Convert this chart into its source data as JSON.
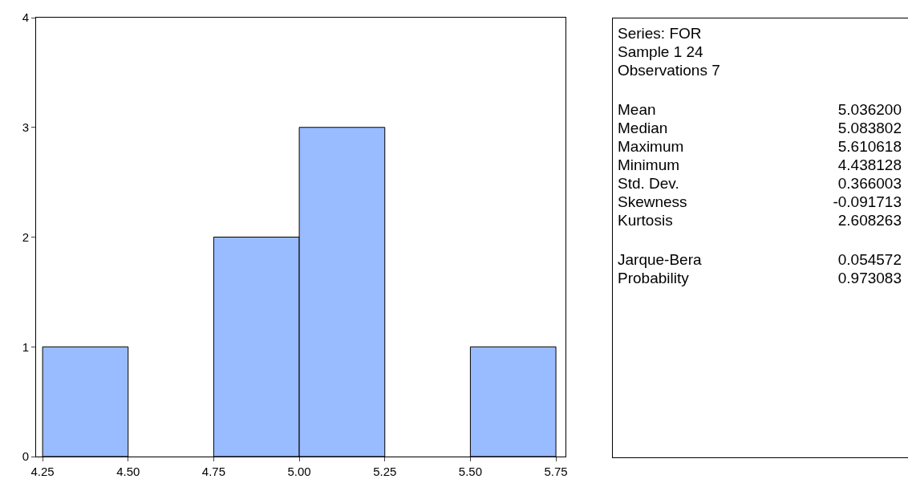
{
  "chart_data": [
    {
      "type": "histogram",
      "bins": [
        4.25,
        4.5,
        4.75,
        5.0,
        5.25,
        5.5,
        5.75
      ],
      "values": [
        1,
        0,
        2,
        3,
        0,
        1
      ],
      "color": "#99bbff",
      "xlim": [
        4.231,
        5.778
      ],
      "ylim": [
        0,
        4
      ],
      "xticks": [
        {
          "value": 4.25,
          "label": "4.25"
        },
        {
          "value": 4.5,
          "label": "4.50"
        },
        {
          "value": 4.75,
          "label": "4.75"
        },
        {
          "value": 5.0,
          "label": "5.00"
        },
        {
          "value": 5.25,
          "label": "5.25"
        },
        {
          "value": 5.5,
          "label": "5.50"
        },
        {
          "value": 5.75,
          "label": "5.75"
        }
      ],
      "yticks": [
        0,
        1,
        2,
        3,
        4
      ],
      "grid": false
    },
    {
      "type": "other",
      "annotations": [
        "Series: FOR",
        "Sample 1 24",
        "Observations 7",
        "Mean",
        "5.036200",
        "Median",
        "5.083802",
        "Maximum",
        "5.610618",
        "Minimum",
        "4.438128",
        "Std. Dev.",
        "0.366003",
        "Skewness",
        "-0.091713",
        "Kurtosis",
        "2.608263",
        "Jarque-Bera",
        "0.054572",
        "Probability",
        "0.973083"
      ]
    }
  ]
}
